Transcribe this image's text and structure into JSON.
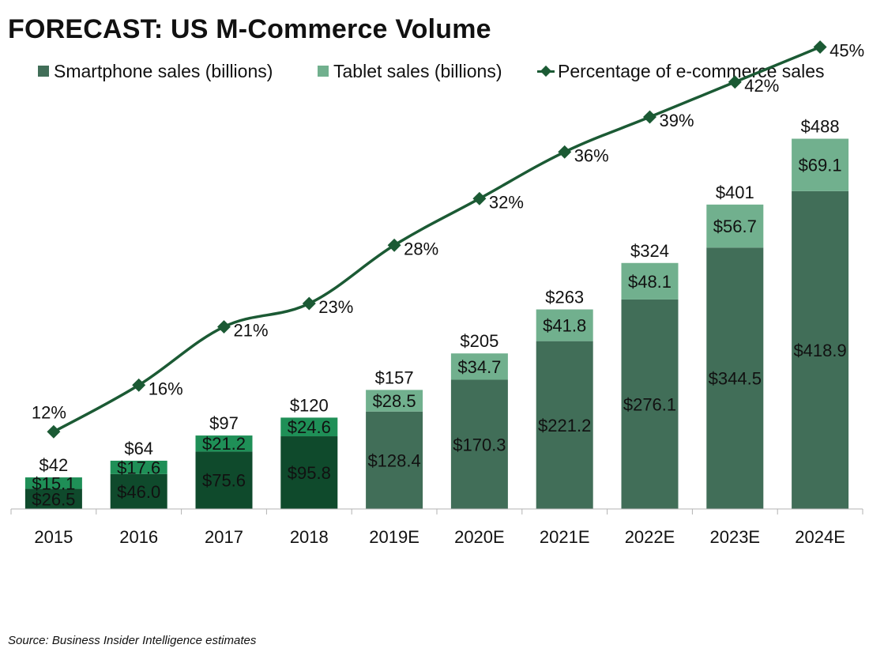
{
  "title": "FORECAST: US M-Commerce Volume",
  "source": "Source: Business Insider Intelligence estimates",
  "colors": {
    "smartphone_actual": "#0f4a2c",
    "tablet_actual": "#1f8f57",
    "smartphone_forecast": "#416e58",
    "tablet_forecast": "#71b08e",
    "line": "#1b5a34",
    "axis": "#b3b3b3"
  },
  "chart_data": {
    "type": "bar",
    "stacked": true,
    "categories": [
      "2015",
      "2016",
      "2017",
      "2018",
      "2019E",
      "2020E",
      "2021E",
      "2022E",
      "2023E",
      "2024E"
    ],
    "series": [
      {
        "name": "Smartphone sales (billions)",
        "values": [
          26.5,
          46.0,
          75.6,
          95.8,
          128.4,
          170.3,
          221.2,
          276.1,
          344.5,
          418.9
        ],
        "labels": [
          "$26.5",
          "$46.0",
          "$75.6",
          "$95.8",
          "$128.4",
          "$170.3",
          "$221.2",
          "$276.1",
          "$344.5",
          "$418.9"
        ]
      },
      {
        "name": "Tablet sales (billions)",
        "values": [
          15.1,
          17.6,
          21.2,
          24.6,
          28.5,
          34.7,
          41.8,
          48.1,
          56.7,
          69.1
        ],
        "labels": [
          "$15.1",
          "$17.6",
          "$21.2",
          "$24.6",
          "$28.5",
          "$34.7",
          "$41.8",
          "$48.1",
          "$56.7",
          "$69.1"
        ]
      }
    ],
    "totals": [
      42,
      64,
      97,
      120,
      157,
      205,
      263,
      324,
      401,
      488
    ],
    "total_labels": [
      "$42",
      "$64",
      "$97",
      "$120",
      "$157",
      "$205",
      "$263",
      "$324",
      "$401",
      "$488"
    ],
    "line_series": {
      "name": "Percentage of e-commerce sales",
      "values": [
        12,
        16,
        21,
        23,
        28,
        32,
        36,
        39,
        42,
        45
      ],
      "labels": [
        "12%",
        "16%",
        "21%",
        "23%",
        "28%",
        "32%",
        "36%",
        "39%",
        "42%",
        "45%"
      ]
    },
    "forecast_from_index": 4,
    "xlabel": "",
    "ylabel": "",
    "legend": "top",
    "grid": false
  }
}
